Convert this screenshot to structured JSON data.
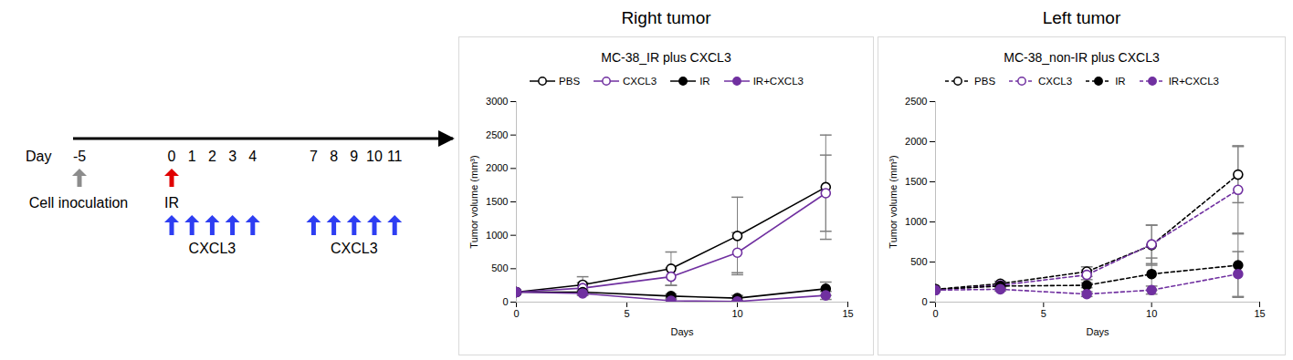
{
  "timeline": {
    "day_label": "Day",
    "days": [
      -5,
      0,
      1,
      2,
      3,
      4,
      7,
      8,
      9,
      10,
      11
    ],
    "inoculation": {
      "day": -5,
      "label": "Cell inoculation",
      "color": "#8c8c8c"
    },
    "irradiation": {
      "day": 0,
      "label": "IR",
      "color": "#e00000"
    },
    "treatments": [
      {
        "days": [
          0,
          1,
          2,
          3,
          4
        ],
        "label": "CXCL3",
        "color": "#2e3ef2"
      },
      {
        "days": [
          7,
          8,
          9,
          10,
          11
        ],
        "label": "CXCL3",
        "color": "#2e3ef2"
      }
    ]
  },
  "chart_data": [
    {
      "type": "line",
      "heading": "Right tumor",
      "title": "MC-38_IR plus CXCL3",
      "x_label": "Days",
      "y_label": "Tumor volume (mm³)",
      "x": [
        0,
        3,
        7,
        10,
        14
      ],
      "xlim": [
        0,
        15
      ],
      "xticks": [
        0,
        5,
        10,
        15
      ],
      "ylim": [
        0,
        3000
      ],
      "yticks": [
        0,
        500,
        1000,
        1500,
        2000,
        2500,
        3000
      ],
      "legend": "top",
      "series": [
        {
          "name": "PBS",
          "color": "#000000",
          "marker": "open_circle",
          "line_style": "solid",
          "values": [
            150,
            260,
            500,
            990,
            1720
          ],
          "error": [
            0,
            120,
            250,
            580,
            780
          ]
        },
        {
          "name": "CXCL3",
          "color": "#7030a0",
          "marker": "open_circle",
          "line_style": "solid",
          "values": [
            150,
            210,
            380,
            740,
            1630
          ],
          "error": [
            0,
            80,
            130,
            300,
            570
          ]
        },
        {
          "name": "IR",
          "color": "#000000",
          "marker": "filled_circle",
          "line_style": "solid",
          "values": [
            150,
            150,
            90,
            60,
            200
          ],
          "error": [
            0,
            30,
            30,
            40,
            100
          ]
        },
        {
          "name": "IR+CXCL3",
          "color": "#7030a0",
          "marker": "filled_circle",
          "line_style": "solid",
          "values": [
            150,
            130,
            20,
            10,
            100
          ],
          "error": [
            0,
            30,
            20,
            20,
            60
          ]
        }
      ]
    },
    {
      "type": "line",
      "heading": "Left tumor",
      "title": "MC-38_non-IR plus CXCL3",
      "x_label": "Days",
      "y_label": "Tumor volume (mm³)",
      "x": [
        0,
        3,
        7,
        10,
        14
      ],
      "xlim": [
        0,
        15
      ],
      "xticks": [
        0,
        5,
        10,
        15
      ],
      "ylim": [
        0,
        2500
      ],
      "yticks": [
        0,
        500,
        1000,
        1500,
        2000,
        2500
      ],
      "legend": "top",
      "series": [
        {
          "name": "PBS",
          "color": "#000000",
          "marker": "open_circle",
          "line_style": "dashed",
          "values": [
            160,
            230,
            380,
            710,
            1590
          ],
          "error": [
            0,
            30,
            60,
            250,
            350
          ]
        },
        {
          "name": "CXCL3",
          "color": "#7030a0",
          "marker": "open_circle",
          "line_style": "dashed",
          "values": [
            150,
            210,
            340,
            720,
            1400
          ],
          "error": [
            0,
            30,
            60,
            240,
            550
          ]
        },
        {
          "name": "IR",
          "color": "#000000",
          "marker": "filled_circle",
          "line_style": "dashed",
          "values": [
            160,
            200,
            210,
            350,
            460
          ],
          "error": [
            0,
            30,
            30,
            200,
            400
          ]
        },
        {
          "name": "IR+CXCL3",
          "color": "#7030a0",
          "marker": "filled_circle",
          "line_style": "dashed",
          "values": [
            150,
            160,
            100,
            150,
            350
          ],
          "error": [
            0,
            20,
            30,
            50,
            280
          ]
        }
      ]
    }
  ]
}
